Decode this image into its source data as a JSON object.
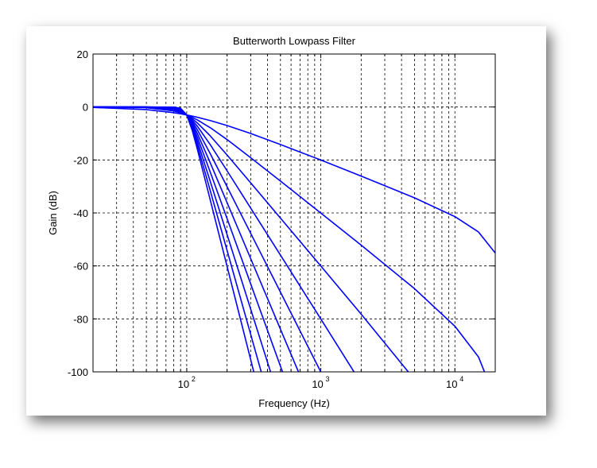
{
  "chart_data": {
    "type": "line",
    "title": "Butterworth Lowpass Filter",
    "xlabel": "Frequency (Hz)",
    "ylabel": "Gain (dB)",
    "xscale": "log",
    "xlim": [
      20,
      20000
    ],
    "ylim": [
      -100,
      20
    ],
    "xticks": [
      {
        "base": "10",
        "exp": "2",
        "value": 100
      },
      {
        "base": "10",
        "exp": "3",
        "value": 1000
      },
      {
        "base": "10",
        "exp": "4",
        "value": 10000
      }
    ],
    "yticks": [
      "20",
      "0",
      "-20",
      "-40",
      "-60",
      "-80",
      "-100"
    ],
    "grid": true,
    "line_color": "#0000ff",
    "x": [
      20,
      50,
      80,
      90,
      100,
      110,
      120,
      150,
      200,
      300,
      500,
      1000,
      2000,
      5000,
      10000,
      15000,
      20000
    ],
    "series": [
      {
        "values": [
          -0.17,
          -0.97,
          -2.15,
          -2.58,
          -3.01,
          -3.44,
          -3.87,
          -5.12,
          -6.99,
          -10,
          -14.15,
          -20.02,
          -26.08,
          -34.3,
          -41.38,
          -47.19,
          -55.12
        ]
      },
      {
        "values": [
          -0.01,
          -0.26,
          -1.49,
          -2.19,
          -3.01,
          -3.92,
          -4.88,
          -7.83,
          -12.3,
          -19.14,
          -27.97,
          -40.03,
          -52.14,
          -68.59,
          -82.76,
          -94.37,
          -110.2
        ]
      },
      {
        "values": [
          0,
          -0.07,
          -1.01,
          -1.85,
          -3.01,
          -4.43,
          -6.01,
          -10.93,
          -18.13,
          -28.63,
          -41.94,
          -60.03,
          -78.2,
          -102.9,
          null,
          null,
          null
        ]
      },
      {
        "values": [
          0,
          -0.02,
          -0.67,
          -1.55,
          -3.01,
          -4.97,
          -7.24,
          -14.25,
          -24.1,
          -38.17,
          -55.92,
          -80.03,
          -104.3,
          null,
          null,
          null,
          null
        ]
      },
      {
        "values": [
          0,
          0,
          -0.44,
          -1.3,
          -3.01,
          -5.56,
          -8.57,
          -17.69,
          -30.11,
          -47.71,
          -69.9,
          -100.04,
          null,
          null,
          null,
          null,
          null
        ]
      },
      {
        "values": [
          0,
          0,
          -0.29,
          -1.08,
          -3.01,
          -6.17,
          -9.97,
          -21.16,
          -36.12,
          -57.25,
          -83.88,
          -120,
          null,
          null,
          null,
          null,
          null
        ]
      },
      {
        "values": [
          0,
          0,
          -0.19,
          -0.89,
          -3.01,
          -6.81,
          -11.41,
          -24.67,
          -42.14,
          -66.8,
          -97.86,
          -140,
          null,
          null,
          null,
          null,
          null
        ]
      },
      {
        "values": [
          0,
          0,
          -0.12,
          -0.74,
          -3.01,
          -7.48,
          -12.9,
          -28.18,
          -48.16,
          -76.34,
          -111.8,
          null,
          null,
          null,
          null,
          null,
          null
        ]
      },
      {
        "values": [
          0,
          0,
          -0.08,
          -0.61,
          -3.01,
          -8.17,
          -14.41,
          -31.7,
          -54.18,
          -85.88,
          -125.8,
          null,
          null,
          null,
          null,
          null,
          null
        ]
      },
      {
        "values": [
          0,
          0,
          -0.05,
          -0.5,
          -3.01,
          -8.88,
          -15.95,
          -35.22,
          -60.2,
          -95.4,
          -139.8,
          null,
          null,
          null,
          null,
          null,
          null
        ]
      }
    ]
  }
}
